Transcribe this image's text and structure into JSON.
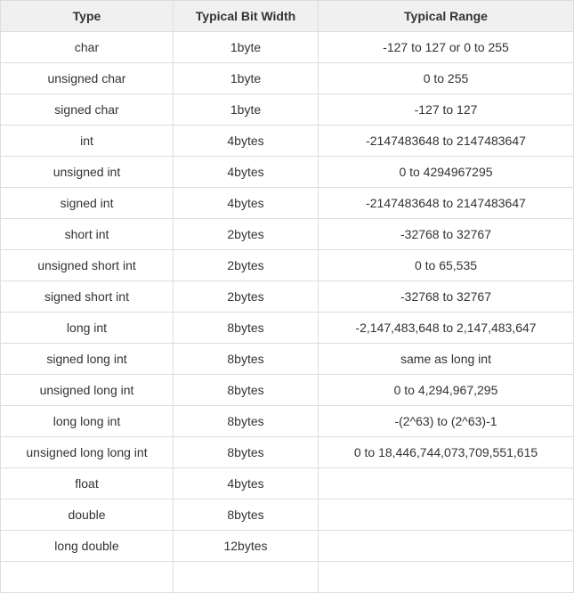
{
  "table": {
    "headers": [
      "Type",
      "Typical Bit Width",
      "Typical Range"
    ],
    "rows": [
      [
        "char",
        "1byte",
        "-127 to 127 or 0 to 255"
      ],
      [
        "unsigned char",
        "1byte",
        "0 to 255"
      ],
      [
        "signed char",
        "1byte",
        "-127 to 127"
      ],
      [
        "int",
        "4bytes",
        "-2147483648 to 2147483647"
      ],
      [
        "unsigned int",
        "4bytes",
        "0 to 4294967295"
      ],
      [
        "signed int",
        "4bytes",
        "-2147483648 to 2147483647"
      ],
      [
        "short int",
        "2bytes",
        "-32768 to 32767"
      ],
      [
        "unsigned short int",
        "2bytes",
        "0 to 65,535"
      ],
      [
        "signed short int",
        "2bytes",
        "-32768 to 32767"
      ],
      [
        "long int",
        "8bytes",
        "-2,147,483,648 to 2,147,483,647"
      ],
      [
        "signed long int",
        "8bytes",
        "same as long int"
      ],
      [
        "unsigned long int",
        "8bytes",
        "0 to 4,294,967,295"
      ],
      [
        "long long int",
        "8bytes",
        "-(2^63) to (2^63)-1"
      ],
      [
        "unsigned long long int",
        "8bytes",
        "0 to 18,446,744,073,709,551,615"
      ],
      [
        "float",
        "4bytes",
        ""
      ],
      [
        "double",
        "8bytes",
        ""
      ],
      [
        "long double",
        "12bytes",
        ""
      ],
      [
        "",
        "",
        ""
      ]
    ]
  }
}
